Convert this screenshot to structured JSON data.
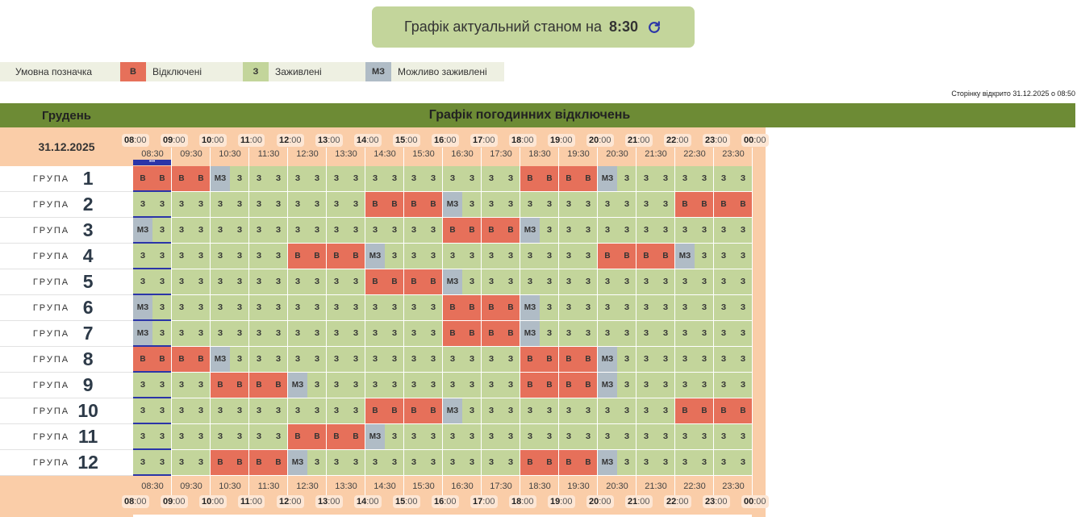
{
  "header": {
    "label": "Графік актуальний станом на",
    "time": "8:30",
    "refresh_icon": "refresh-icon"
  },
  "legend": {
    "title": "Умовна позначка",
    "items": [
      {
        "code": "В",
        "label": "Відключені",
        "color": "#e6705a"
      },
      {
        "code": "З",
        "label": "Заживлені",
        "color": "#c3d59b"
      },
      {
        "code": "МЗ",
        "label": "Можливо заживлені",
        "color": "#b0bcc6"
      }
    ]
  },
  "opened": "Сторінку відкрито 31.12.2025 о 08:50",
  "month": "Грудень",
  "title": "Графік погодинних відключень",
  "date": "31.12.2025",
  "hours": [
    "08",
    "09",
    "10",
    "11",
    "12",
    "13",
    "14",
    "15",
    "16",
    "17",
    "18",
    "19",
    "20",
    "21",
    "22",
    "23",
    "00"
  ],
  "minutes": ":00",
  "halfhours": [
    "08:30",
    "09:30",
    "10:30",
    "11:30",
    "12:30",
    "13:30",
    "14:30",
    "15:30",
    "16:30",
    "17:30",
    "18:30",
    "19:30",
    "20:30",
    "21:30",
    "22:30",
    "23:30"
  ],
  "group_label": "ГРУПА",
  "current_marker": "•••",
  "codes": {
    "z": "З",
    "v": "В",
    "m": "МЗ"
  },
  "groups": [
    {
      "num": "1",
      "cells": "vvvvmzzzzzzzzzzzzzzzvvvvmzzzzzzz"
    },
    {
      "num": "2",
      "cells": "zzzzzzzzzzzzvvvvmzzzzzzzzzzzvvvv"
    },
    {
      "num": "3",
      "cells": "mzzzzzzzzzzzzzzzvvvvmzzzzzzzzzzz"
    },
    {
      "num": "4",
      "cells": "zzzzzzzzvvvvmzzzzzzzzzzzvvvvmzzz"
    },
    {
      "num": "5",
      "cells": "zzzzzzzzzzzzvvvvmzzzzzzzzzzzzzzz"
    },
    {
      "num": "6",
      "cells": "mzzzzzzzzzzzzzzzvvvvmzzzzzzzzzzz"
    },
    {
      "num": "7",
      "cells": "mzzzzzzzzzzzzzzzvvvvmzzzzzzzzzzz"
    },
    {
      "num": "8",
      "cells": "vvvvmzzzzzzzzzzzzzzzvvvvmzzzzzzz"
    },
    {
      "num": "9",
      "cells": "zzzzvvvvmzzzzzzzzzzzvvvvmzzzzzzz"
    },
    {
      "num": "10",
      "cells": "zzzzzzzzzzzzvvvvmzzzzzzzzzzzvvvv"
    },
    {
      "num": "11",
      "cells": "zzzzzzzzvvvvmzzzzzzzzzzzzzzzzzzz"
    },
    {
      "num": "12",
      "cells": "zzzzvvvvmzzzzzzzzzzzvvvvmzzzzzzz"
    }
  ]
}
